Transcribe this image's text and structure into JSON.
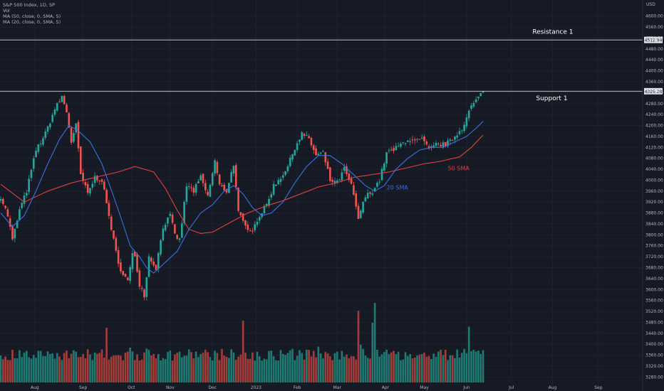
{
  "legend": {
    "line1": "S&P 500 Index, 1D, SP",
    "line2": "Vol",
    "line3": "MA (50, close, 0, SMA, 5)",
    "line4": "MA (20, close, 0, SMA, 5)"
  },
  "chart_data": {
    "type": "candlestick",
    "currency": "USD",
    "y_axis": {
      "min": 3260,
      "max": 4620,
      "ticks": [
        3280,
        3320,
        3360,
        3400,
        3440,
        3480,
        3520,
        3560,
        3600,
        3640,
        3680,
        3720,
        3760,
        3800,
        3840,
        3880,
        3920,
        3960,
        4000,
        4040,
        4080,
        4120,
        4160,
        4200,
        4240,
        4280,
        4320,
        4360,
        4400,
        4440,
        4480,
        4520,
        4560,
        4600
      ],
      "tick_labels": [
        "3280.00",
        "3320.00",
        "3360.00",
        "3400.00",
        "3440.00",
        "3480.00",
        "3520.00",
        "3560.00",
        "3600.00",
        "3640.00",
        "3680.00",
        "3720.00",
        "3760.00",
        "3800.00",
        "3840.00",
        "3880.00",
        "3920.00",
        "3960.00",
        "4000.00",
        "4040.00",
        "4080.00",
        "4120.00",
        "4160.00",
        "4200.00",
        "4240.00",
        "4280.00",
        "4320.00",
        "4360.00",
        "4400.00",
        "4440.00",
        "4480.00",
        "4520.00",
        "4560.00",
        "4600.00"
      ]
    },
    "x_axis": {
      "labels": [
        {
          "label": "Aug",
          "bar_index": 29
        },
        {
          "label": "Sep",
          "bar_index": 70
        },
        {
          "label": "Oct",
          "bar_index": 111
        },
        {
          "label": "Nov",
          "bar_index": 144
        },
        {
          "label": "Dec",
          "bar_index": 180
        },
        {
          "label": "2023",
          "bar_index": 217
        },
        {
          "label": "Feb",
          "bar_index": 252
        },
        {
          "label": "Mar",
          "bar_index": 286
        },
        {
          "label": "Apr",
          "bar_index": 327
        },
        {
          "label": "May",
          "bar_index": 360
        },
        {
          "label": "Jun",
          "bar_index": 396
        },
        {
          "label": "Jul",
          "bar_index": 434
        },
        {
          "label": "Aug",
          "bar_index": 469
        },
        {
          "label": "Sep",
          "bar_index": 508
        }
      ],
      "total_slots": 545,
      "last_bar_index": 410
    },
    "anchors": [
      {
        "i": 0,
        "p": 3940
      },
      {
        "i": 6,
        "p": 3870
      },
      {
        "i": 10,
        "p": 3780
      },
      {
        "i": 16,
        "p": 3890
      },
      {
        "i": 22,
        "p": 3960
      },
      {
        "i": 30,
        "p": 4110
      },
      {
        "i": 38,
        "p": 4170
      },
      {
        "i": 46,
        "p": 4260
      },
      {
        "i": 52,
        "p": 4305
      },
      {
        "i": 56,
        "p": 4250
      },
      {
        "i": 60,
        "p": 4140
      },
      {
        "i": 64,
        "p": 4200
      },
      {
        "i": 68,
        "p": 4020
      },
      {
        "i": 74,
        "p": 3950
      },
      {
        "i": 80,
        "p": 4010
      },
      {
        "i": 86,
        "p": 4000
      },
      {
        "i": 92,
        "p": 3870
      },
      {
        "i": 100,
        "p": 3690
      },
      {
        "i": 108,
        "p": 3630
      },
      {
        "i": 113,
        "p": 3750
      },
      {
        "i": 118,
        "p": 3620
      },
      {
        "i": 122,
        "p": 3580
      },
      {
        "i": 126,
        "p": 3720
      },
      {
        "i": 132,
        "p": 3680
      },
      {
        "i": 138,
        "p": 3830
      },
      {
        "i": 144,
        "p": 3870
      },
      {
        "i": 148,
        "p": 3800
      },
      {
        "i": 152,
        "p": 3780
      },
      {
        "i": 158,
        "p": 3980
      },
      {
        "i": 164,
        "p": 3960
      },
      {
        "i": 170,
        "p": 4010
      },
      {
        "i": 176,
        "p": 3940
      },
      {
        "i": 182,
        "p": 4070
      },
      {
        "i": 186,
        "p": 3980
      },
      {
        "i": 192,
        "p": 3960
      },
      {
        "i": 198,
        "p": 4060
      },
      {
        "i": 202,
        "p": 3880
      },
      {
        "i": 208,
        "p": 3830
      },
      {
        "i": 214,
        "p": 3820
      },
      {
        "i": 220,
        "p": 3870
      },
      {
        "i": 226,
        "p": 3910
      },
      {
        "i": 232,
        "p": 3980
      },
      {
        "i": 238,
        "p": 4010
      },
      {
        "i": 244,
        "p": 4050
      },
      {
        "i": 250,
        "p": 4120
      },
      {
        "i": 256,
        "p": 4170
      },
      {
        "i": 262,
        "p": 4150
      },
      {
        "i": 268,
        "p": 4090
      },
      {
        "i": 274,
        "p": 4100
      },
      {
        "i": 280,
        "p": 4000
      },
      {
        "i": 286,
        "p": 3990
      },
      {
        "i": 292,
        "p": 4040
      },
      {
        "i": 298,
        "p": 3980
      },
      {
        "i": 304,
        "p": 3860
      },
      {
        "i": 310,
        "p": 3940
      },
      {
        "i": 316,
        "p": 3960
      },
      {
        "i": 322,
        "p": 4000
      },
      {
        "i": 328,
        "p": 4100
      },
      {
        "i": 334,
        "p": 4110
      },
      {
        "i": 340,
        "p": 4130
      },
      {
        "i": 346,
        "p": 4150
      },
      {
        "i": 352,
        "p": 4140
      },
      {
        "i": 358,
        "p": 4150
      },
      {
        "i": 364,
        "p": 4110
      },
      {
        "i": 370,
        "p": 4130
      },
      {
        "i": 376,
        "p": 4130
      },
      {
        "i": 382,
        "p": 4140
      },
      {
        "i": 388,
        "p": 4170
      },
      {
        "i": 392,
        "p": 4190
      },
      {
        "i": 396,
        "p": 4230
      },
      {
        "i": 400,
        "p": 4270
      },
      {
        "i": 404,
        "p": 4290
      },
      {
        "i": 410,
        "p": 4325
      }
    ],
    "ma50": [
      {
        "i": 0,
        "p": 3985
      },
      {
        "i": 20,
        "p": 3920
      },
      {
        "i": 40,
        "p": 3960
      },
      {
        "i": 60,
        "p": 3990
      },
      {
        "i": 80,
        "p": 4010
      },
      {
        "i": 100,
        "p": 4030
      },
      {
        "i": 114,
        "p": 4050
      },
      {
        "i": 130,
        "p": 4030
      },
      {
        "i": 140,
        "p": 3970
      },
      {
        "i": 150,
        "p": 3890
      },
      {
        "i": 160,
        "p": 3820
      },
      {
        "i": 170,
        "p": 3805
      },
      {
        "i": 180,
        "p": 3810
      },
      {
        "i": 195,
        "p": 3845
      },
      {
        "i": 210,
        "p": 3880
      },
      {
        "i": 225,
        "p": 3905
      },
      {
        "i": 240,
        "p": 3925
      },
      {
        "i": 255,
        "p": 3950
      },
      {
        "i": 270,
        "p": 3975
      },
      {
        "i": 285,
        "p": 3990
      },
      {
        "i": 300,
        "p": 4010
      },
      {
        "i": 315,
        "p": 4020
      },
      {
        "i": 330,
        "p": 4030
      },
      {
        "i": 345,
        "p": 4045
      },
      {
        "i": 360,
        "p": 4060
      },
      {
        "i": 375,
        "p": 4070
      },
      {
        "i": 390,
        "p": 4085
      },
      {
        "i": 400,
        "p": 4120
      },
      {
        "i": 410,
        "p": 4165
      }
    ],
    "ma20": [
      {
        "i": 0,
        "p": 3880
      },
      {
        "i": 10,
        "p": 3830
      },
      {
        "i": 20,
        "p": 3870
      },
      {
        "i": 30,
        "p": 3960
      },
      {
        "i": 40,
        "p": 4060
      },
      {
        "i": 50,
        "p": 4150
      },
      {
        "i": 58,
        "p": 4200
      },
      {
        "i": 66,
        "p": 4180
      },
      {
        "i": 76,
        "p": 4140
      },
      {
        "i": 86,
        "p": 4060
      },
      {
        "i": 96,
        "p": 3940
      },
      {
        "i": 104,
        "p": 3840
      },
      {
        "i": 110,
        "p": 3760
      },
      {
        "i": 118,
        "p": 3720
      },
      {
        "i": 124,
        "p": 3680
      },
      {
        "i": 130,
        "p": 3660
      },
      {
        "i": 140,
        "p": 3700
      },
      {
        "i": 150,
        "p": 3740
      },
      {
        "i": 160,
        "p": 3820
      },
      {
        "i": 170,
        "p": 3880
      },
      {
        "i": 180,
        "p": 3910
      },
      {
        "i": 190,
        "p": 3960
      },
      {
        "i": 198,
        "p": 3980
      },
      {
        "i": 206,
        "p": 3950
      },
      {
        "i": 214,
        "p": 3900
      },
      {
        "i": 222,
        "p": 3870
      },
      {
        "i": 230,
        "p": 3880
      },
      {
        "i": 240,
        "p": 3920
      },
      {
        "i": 250,
        "p": 3990
      },
      {
        "i": 260,
        "p": 4050
      },
      {
        "i": 270,
        "p": 4090
      },
      {
        "i": 280,
        "p": 4090
      },
      {
        "i": 290,
        "p": 4060
      },
      {
        "i": 300,
        "p": 4020
      },
      {
        "i": 310,
        "p": 3980
      },
      {
        "i": 318,
        "p": 3960
      },
      {
        "i": 326,
        "p": 3980
      },
      {
        "i": 336,
        "p": 4040
      },
      {
        "i": 346,
        "p": 4080
      },
      {
        "i": 356,
        "p": 4110
      },
      {
        "i": 366,
        "p": 4120
      },
      {
        "i": 376,
        "p": 4120
      },
      {
        "i": 386,
        "p": 4140
      },
      {
        "i": 396,
        "p": 4160
      },
      {
        "i": 404,
        "p": 4190
      },
      {
        "i": 410,
        "p": 4215
      }
    ],
    "horizontal_lines": [
      {
        "name": "Resistance 1",
        "price": 4512.94,
        "label": "4512.94"
      },
      {
        "name": "Support 1",
        "price": 4325.28,
        "label": "4325.28"
      }
    ],
    "annotations": [
      {
        "text": "Resistance 1",
        "bar_index": 452,
        "price": 4535
      },
      {
        "text": "Support 1",
        "bar_index": 455,
        "price": 4293
      },
      {
        "text": "50 SMA",
        "bar_index": 380,
        "price": 4036
      },
      {
        "text": "20 SMA",
        "bar_index": 328,
        "price": 3966
      }
    ],
    "volume": {
      "max": 1,
      "spikes": [
        {
          "i": 90,
          "v": 0.55
        },
        {
          "i": 206,
          "v": 0.62
        },
        {
          "i": 304,
          "v": 0.72
        },
        {
          "i": 316,
          "v": 0.6
        },
        {
          "i": 318,
          "v": 0.8
        },
        {
          "i": 398,
          "v": 0.56
        },
        {
          "i": 110,
          "v": 0.35
        },
        {
          "i": 270,
          "v": 0.36
        },
        {
          "i": 306,
          "v": 0.38
        }
      ]
    },
    "colors": {
      "up": "#26a69a",
      "down": "#ef5350",
      "up_volume": "#1f7a72",
      "down_volume": "#a33d3a",
      "ma50": "#e0403c",
      "ma20": "#3f6fe0",
      "level_line": "#d1d4dc",
      "background": "#161a25",
      "axis_text": "#b2b5be",
      "sma50_label": "#e0403c",
      "sma20_label": "#3f6fe0"
    }
  }
}
